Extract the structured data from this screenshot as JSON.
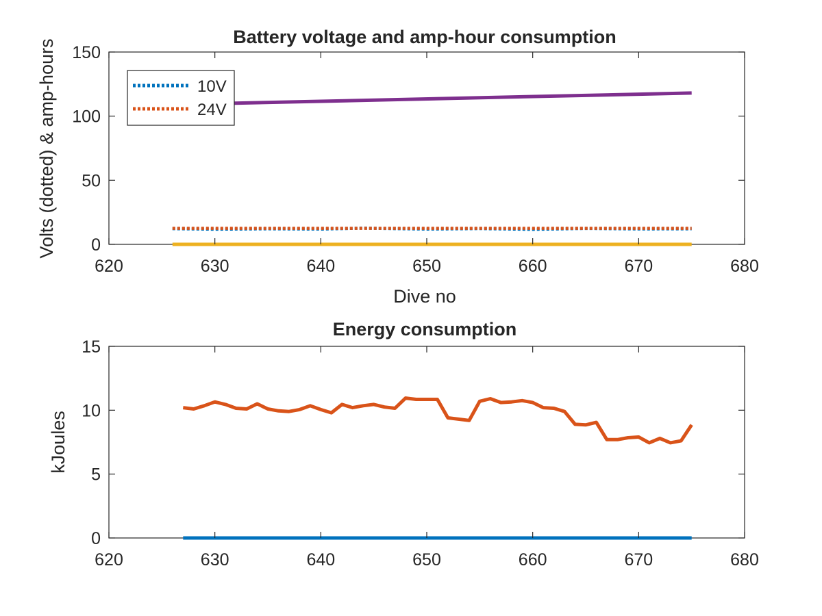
{
  "chart_data": [
    {
      "type": "line",
      "title": "Battery voltage and amp-hour consumption",
      "xlabel": "Dive no",
      "ylabel": "Volts (dotted) & amp-hours",
      "xlim": [
        620,
        680
      ],
      "ylim": [
        0,
        150
      ],
      "xticks": [
        "620",
        "630",
        "640",
        "650",
        "660",
        "670",
        "680"
      ],
      "yticks": [
        "0",
        "50",
        "100",
        "150"
      ],
      "grid": false,
      "legend_position": "top-left",
      "series": [
        {
          "name": "10V",
          "style": "dotted",
          "color": "#0072BD",
          "x": [
            626,
            630,
            635,
            640,
            644,
            650,
            655,
            660,
            665,
            670,
            675
          ],
          "y": [
            12.2,
            11.8,
            12.1,
            11.9,
            12.6,
            11.9,
            12.3,
            11.7,
            12.4,
            12.0,
            12.1
          ]
        },
        {
          "name": "24V",
          "style": "dotted",
          "color": "#D95319",
          "x": [
            626,
            675
          ],
          "y": [
            12.5,
            12.5
          ]
        },
        {
          "style": "solid",
          "color": "#7E2F8E",
          "x": [
            626,
            675
          ],
          "y": [
            109,
            118
          ]
        },
        {
          "style": "solid",
          "color": "#EDB120",
          "x": [
            626,
            675
          ],
          "y": [
            0,
            0
          ]
        }
      ]
    },
    {
      "type": "line",
      "title": "Energy consumption",
      "xlabel": "",
      "ylabel": "kJoules",
      "xlim": [
        620,
        680
      ],
      "ylim": [
        0,
        15
      ],
      "xticks": [
        "620",
        "630",
        "640",
        "650",
        "660",
        "670",
        "680"
      ],
      "yticks": [
        "0",
        "5",
        "10",
        "15"
      ],
      "grid": false,
      "series": [
        {
          "style": "solid",
          "color": "#D95319",
          "x": [
            627,
            628,
            629,
            630,
            631,
            632,
            633,
            634,
            635,
            636,
            637,
            638,
            639,
            640,
            641,
            642,
            643,
            644,
            645,
            646,
            647,
            648,
            649,
            650,
            651,
            652,
            653,
            654,
            655,
            656,
            657,
            658,
            659,
            660,
            661,
            662,
            663,
            664,
            665,
            666,
            667,
            668,
            669,
            670,
            671,
            672,
            673,
            674,
            675
          ],
          "y": [
            10.2,
            10.1,
            10.35,
            10.65,
            10.45,
            10.15,
            10.1,
            10.5,
            10.1,
            9.95,
            9.9,
            10.05,
            10.35,
            10.05,
            9.8,
            10.45,
            10.2,
            10.35,
            10.45,
            10.25,
            10.15,
            10.95,
            10.85,
            10.85,
            10.85,
            9.4,
            9.3,
            9.2,
            10.7,
            10.9,
            10.6,
            10.65,
            10.75,
            10.6,
            10.2,
            10.15,
            9.9,
            8.9,
            8.85,
            9.05,
            7.7,
            7.7,
            7.85,
            7.9,
            7.45,
            7.8,
            7.45,
            7.6,
            8.85
          ]
        },
        {
          "style": "solid",
          "color": "#0072BD",
          "x": [
            627,
            675
          ],
          "y": [
            0,
            0
          ]
        }
      ]
    }
  ]
}
